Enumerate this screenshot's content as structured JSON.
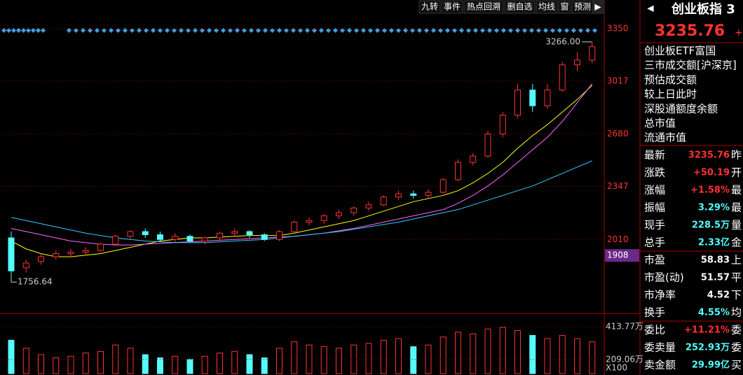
{
  "toolbar": [
    "九转",
    "事件",
    "热点回溯",
    "删自选",
    "均线",
    "窗",
    "预测"
  ],
  "chart_data": {
    "type": "candlestick",
    "ylim": [
      1553,
      3399
    ],
    "yticks": [
      3350,
      3017,
      2680,
      2347,
      2010
    ],
    "cursor_label": 1908,
    "high_label": "3266.00",
    "low_label": "1756.64",
    "up_color": "#ff3232",
    "down_color": "#54fcfc",
    "candles": [
      [
        2020,
        2060,
        1756.64,
        1810
      ],
      [
        1830,
        1880,
        1800,
        1860
      ],
      [
        1870,
        1920,
        1850,
        1900
      ],
      [
        1900,
        1940,
        1880,
        1920
      ],
      [
        1920,
        1950,
        1900,
        1930
      ],
      [
        1930,
        1960,
        1910,
        1940
      ],
      [
        1940,
        1990,
        1930,
        1980
      ],
      [
        1980,
        2040,
        1970,
        2030
      ],
      [
        2030,
        2070,
        2010,
        2060
      ],
      [
        2060,
        2080,
        2020,
        2040
      ],
      [
        2040,
        2060,
        2000,
        2010
      ],
      [
        2010,
        2050,
        1990,
        2030
      ],
      [
        2030,
        2040,
        1990,
        2000
      ],
      [
        2000,
        2030,
        1980,
        2020
      ],
      [
        2020,
        2060,
        2000,
        2050
      ],
      [
        2050,
        2080,
        2030,
        2060
      ],
      [
        2060,
        2070,
        2020,
        2040
      ],
      [
        2040,
        2050,
        2000,
        2010
      ],
      [
        2010,
        2070,
        2000,
        2060
      ],
      [
        2060,
        2130,
        2050,
        2120
      ],
      [
        2120,
        2150,
        2100,
        2130
      ],
      [
        2130,
        2170,
        2110,
        2160
      ],
      [
        2160,
        2200,
        2140,
        2180
      ],
      [
        2180,
        2220,
        2160,
        2210
      ],
      [
        2210,
        2250,
        2190,
        2230
      ],
      [
        2230,
        2290,
        2220,
        2280
      ],
      [
        2280,
        2320,
        2260,
        2300
      ],
      [
        2300,
        2320,
        2270,
        2290
      ],
      [
        2290,
        2330,
        2270,
        2310
      ],
      [
        2310,
        2400,
        2300,
        2390
      ],
      [
        2390,
        2520,
        2380,
        2500
      ],
      [
        2500,
        2560,
        2480,
        2540
      ],
      [
        2540,
        2700,
        2530,
        2680
      ],
      [
        2680,
        2820,
        2660,
        2800
      ],
      [
        2800,
        3000,
        2780,
        2960
      ],
      [
        2960,
        3000,
        2820,
        2860
      ],
      [
        2860,
        3000,
        2840,
        2960
      ],
      [
        2960,
        3140,
        2950,
        3120
      ],
      [
        3120,
        3200,
        3080,
        3150
      ],
      [
        3150,
        3266,
        3130,
        3235.76
      ]
    ],
    "series": [
      {
        "color": "#ffff00",
        "values": [
          2000,
          1950,
          1920,
          1900,
          1900,
          1910,
          1920,
          1940,
          1960,
          1980,
          2000,
          2010,
          2020,
          2020,
          2025,
          2030,
          2035,
          2035,
          2035,
          2050,
          2070,
          2090,
          2110,
          2130,
          2160,
          2190,
          2220,
          2250,
          2270,
          2290,
          2320,
          2370,
          2430,
          2500,
          2590,
          2670,
          2740,
          2820,
          2900,
          2990
        ]
      },
      {
        "color": "#ff66ff",
        "values": [
          2080,
          2060,
          2040,
          2020,
          2000,
          1990,
          1980,
          1975,
          1975,
          1980,
          1985,
          1990,
          1995,
          2000,
          2005,
          2010,
          2015,
          2020,
          2025,
          2030,
          2040,
          2050,
          2065,
          2080,
          2100,
          2120,
          2140,
          2160,
          2180,
          2200,
          2240,
          2290,
          2350,
          2420,
          2500,
          2580,
          2660,
          2760,
          2880,
          3000
        ]
      },
      {
        "color": "#33ccff",
        "values": [
          2150,
          2130,
          2110,
          2090,
          2070,
          2050,
          2035,
          2020,
          2010,
          2000,
          1995,
          1990,
          1990,
          1990,
          1995,
          2000,
          2005,
          2010,
          2020,
          2030,
          2040,
          2050,
          2060,
          2075,
          2090,
          2105,
          2120,
          2140,
          2160,
          2180,
          2200,
          2230,
          2260,
          2290,
          2320,
          2350,
          2390,
          2430,
          2470,
          2510
        ]
      }
    ],
    "volume": {
      "ylim": [
        122,
        488
      ],
      "tick_labels": [
        "413.77万",
        "209.06万"
      ],
      "tick_values": [
        413.77,
        209.06
      ],
      "unit_label": "X100",
      "values": [
        330,
        280,
        240,
        220,
        230,
        250,
        260,
        300,
        280,
        240,
        220,
        230,
        210,
        230,
        250,
        260,
        240,
        220,
        280,
        320,
        300,
        290,
        280,
        300,
        310,
        330,
        340,
        290,
        300,
        350,
        380,
        370,
        400,
        410,
        390,
        360,
        340,
        360,
        340,
        320
      ]
    }
  },
  "right_panel": {
    "title": "创业板指 3",
    "price": "3235.76",
    "price_sign": "+",
    "links": [
      "创业板ETF富国",
      "三市成交额[沪深京]",
      "预估成交额",
      "较上日此时",
      "深股通额度余额",
      "总市值",
      "流通市值"
    ],
    "rows": [
      {
        "label": "最新",
        "value": "3235.76",
        "tail": "昨",
        "color": "#ff3232"
      },
      {
        "label": "涨跌",
        "value": "+50.19",
        "tail": "开",
        "color": "#ff3232"
      },
      {
        "label": "涨幅",
        "value": "+1.58%",
        "tail": "最",
        "color": "#ff3232"
      },
      {
        "label": "振幅",
        "value": "3.29%",
        "tail": "最",
        "color": "#54fcfc"
      },
      {
        "label": "现手",
        "value": "228.5万",
        "tail": "量",
        "color": "#54fcfc"
      },
      {
        "label": "总手",
        "value": "2.33亿",
        "tail": "金",
        "color": "#54fcfc"
      },
      {
        "label": "市盈",
        "value": "58.83",
        "tail": "上",
        "color": "#ffffff"
      },
      {
        "label": "市盈(动)",
        "value": "51.57",
        "tail": "平",
        "color": "#ffffff"
      },
      {
        "label": "市净率",
        "value": "4.52",
        "tail": "下",
        "color": "#ffffff"
      },
      {
        "label": "换手",
        "value": "4.55%",
        "tail": "均",
        "color": "#54fcfc"
      },
      {
        "label": "委比",
        "value": "+11.21%",
        "tail": "委",
        "color": "#ff3232"
      },
      {
        "label": "委卖量",
        "value": "252.93万",
        "tail": "委",
        "color": "#54fcfc"
      },
      {
        "label": "卖金额",
        "value": "29.99亿",
        "tail": "买",
        "color": "#54fcfc"
      }
    ]
  }
}
